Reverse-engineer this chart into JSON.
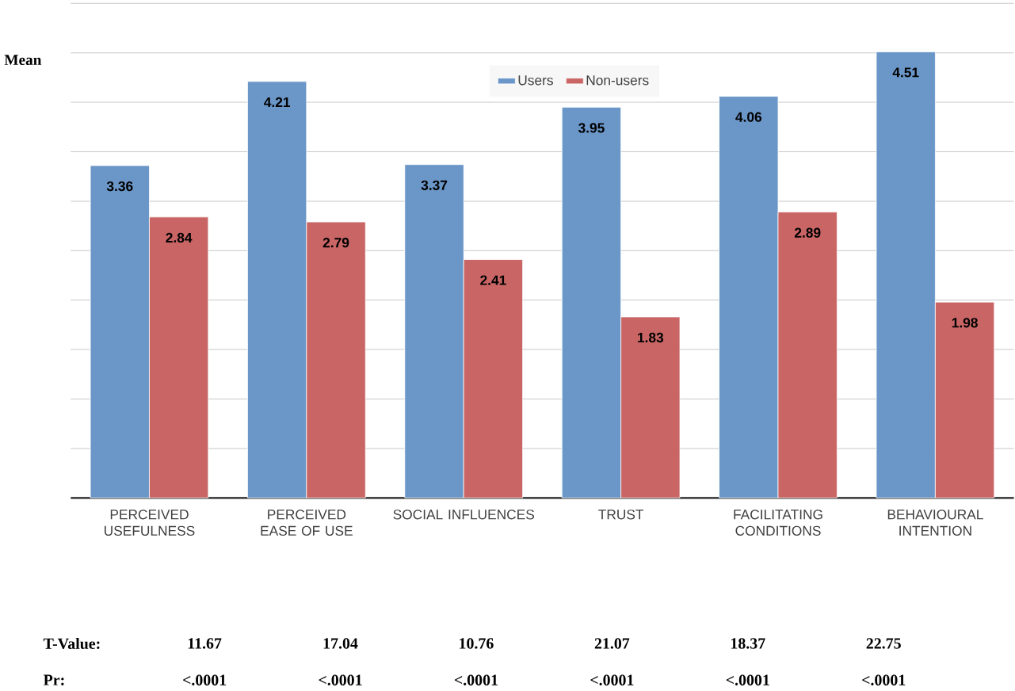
{
  "chart_data": {
    "type": "bar",
    "ylabel": "Mean",
    "categories": [
      "PERCEIVED USEFULNESS",
      "PERCEIVED EASE OF USE",
      "SOCIAL INFLUENCES",
      "TRUST",
      "FACILITATING CONDITIONS",
      "BEHAVIOURAL INTENTION"
    ],
    "series": [
      {
        "name": "Users",
        "color": "#6a96c8",
        "values": [
          3.36,
          4.21,
          3.37,
          3.95,
          4.06,
          4.51
        ]
      },
      {
        "name": "Non-users",
        "color": "#c96565",
        "values": [
          2.84,
          2.79,
          2.41,
          1.83,
          2.89,
          1.98
        ]
      }
    ],
    "ylim": [
      0,
      5
    ],
    "yticks": [
      {
        "value": 0,
        "label": null
      },
      {
        "value": 0.5,
        "label": null
      },
      {
        "value": 1,
        "label": null
      },
      {
        "value": 1.5,
        "label": null
      },
      {
        "value": 2,
        "label": null
      },
      {
        "value": 2.5,
        "label": null
      },
      {
        "value": 3,
        "label": null
      },
      {
        "value": 3.5,
        "label": null
      },
      {
        "value": 4,
        "label": null
      },
      {
        "value": 4.5,
        "label": null
      },
      {
        "value": 5,
        "label": null
      }
    ],
    "tick_labels": "x",
    "grid": "y",
    "legend": "top",
    "data_labels": true,
    "annotations": [
      "T-Value:",
      "11.67",
      "17.04",
      "10.76",
      "21.07",
      "18.37",
      "22.75",
      "Pr:",
      "<.0001",
      "<.0001",
      "<.0001",
      "<.0001",
      "<.0001",
      "<.0001"
    ]
  }
}
